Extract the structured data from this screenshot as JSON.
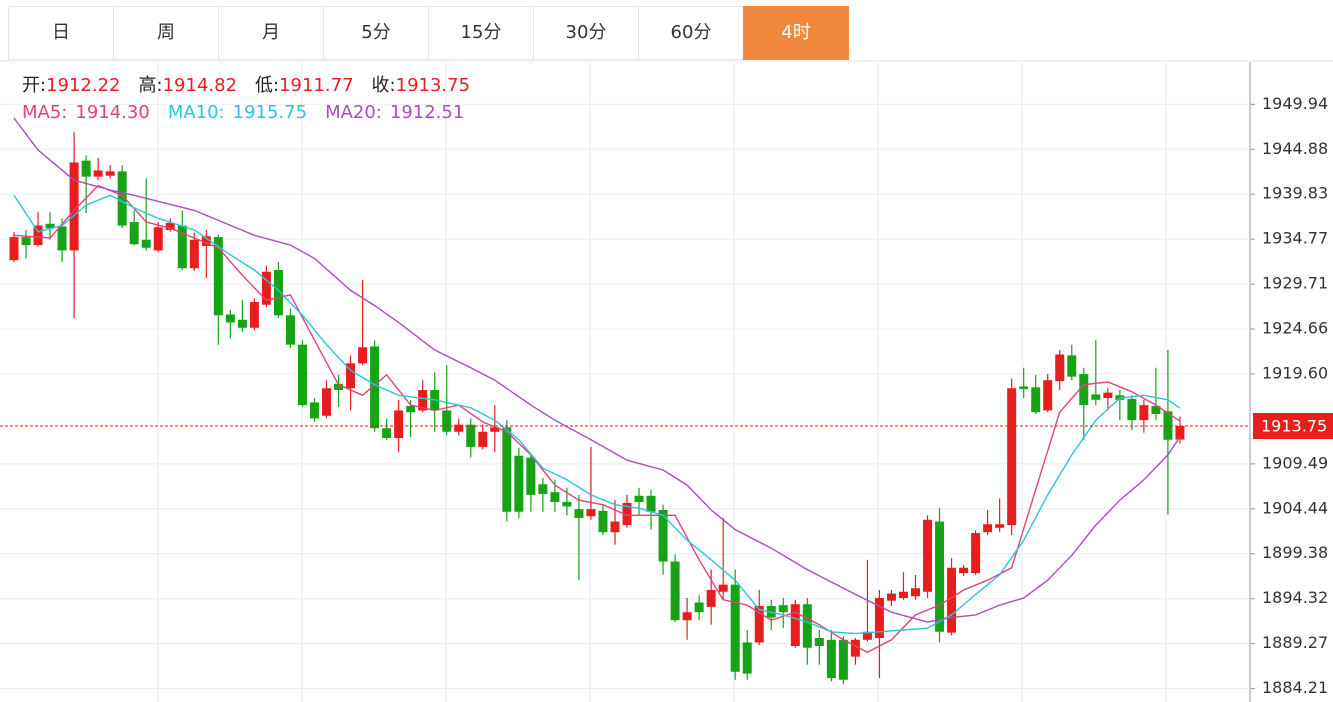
{
  "tabs": [
    {
      "label": "日"
    },
    {
      "label": "周"
    },
    {
      "label": "月"
    },
    {
      "label": "5分"
    },
    {
      "label": "15分"
    },
    {
      "label": "30分"
    },
    {
      "label": "60分"
    },
    {
      "label": "4时",
      "active": true
    }
  ],
  "chart_data": {
    "type": "candlestick",
    "up_color": "#e81e1e",
    "down_color": "#16a316",
    "grid": true,
    "ohlc_header": [
      {
        "label": "开:",
        "value": 1912.22
      },
      {
        "label": "高:",
        "value": 1914.82
      },
      {
        "label": "低:",
        "value": 1911.77
      },
      {
        "label": "收:",
        "value": 1913.75
      }
    ],
    "ylim": [
      1882.7,
      1954.7
    ],
    "yticks": [
      1949.94,
      1944.88,
      1939.83,
      1934.77,
      1929.71,
      1924.66,
      {
        "value": 1919.6,
        "label": "1919.60"
      },
      1909.49,
      1904.44,
      1899.38,
      1894.32,
      1889.27,
      1884.21
    ],
    "open": [
      1932.4,
      1935.0,
      1934.1,
      1936.5,
      1936.2,
      1933.5,
      1943.6,
      1941.8,
      1941.9,
      1942.4,
      1936.7,
      1934.7,
      1933.5,
      1935.8,
      1936.3,
      1931.5,
      1934.0,
      1935.0,
      1926.3,
      1925.7,
      1924.8,
      1927.4,
      1931.3,
      1926.2,
      1922.9,
      1916.4,
      1914.9,
      1918.5,
      1918.0,
      1920.8,
      1922.7,
      1913.5,
      1912.4,
      1916.0,
      1915.5,
      1917.8,
      1915.5,
      1913.1,
      1913.9,
      1911.4,
      1913.1,
      1913.6,
      1910.4,
      1910.2,
      1907.2,
      1906.3,
      1905.2,
      1904.4,
      1903.6,
      1904.2,
      1901.8,
      1902.6,
      1905.9,
      1905.9,
      1904.3,
      1898.5,
      1891.9,
      1893.9,
      1893.4,
      1895.1,
      1895.9,
      1889.4,
      1889.4,
      1893.5,
      1893.6,
      1889.0,
      1893.7,
      1889.9,
      1889.7,
      1889.7,
      1887.8,
      1889.7,
      1889.9,
      1894.1,
      1894.4,
      1894.6,
      1895.1,
      1903.0,
      1890.5,
      1897.2,
      1897.2,
      1901.8,
      1902.3,
      1902.6,
      1918.2,
      1918.1,
      1915.5,
      1918.8,
      1921.7,
      1919.6,
      1917.3,
      1916.9,
      1917.2,
      1916.8,
      1914.4,
      1916.0,
      1915.4,
      1912.22
    ],
    "high": [
      1935.6,
      1935.8,
      1937.8,
      1937.8,
      1937.1,
      1946.8,
      1944.2,
      1943.9,
      1943.1,
      1943.1,
      1938.0,
      1941.6,
      1936.7,
      1937.1,
      1938.0,
      1935.5,
      1935.8,
      1935.3,
      1926.8,
      1927.9,
      1928.1,
      1931.8,
      1932.2,
      1927.0,
      1923.4,
      1916.9,
      1918.9,
      1919.5,
      1921.7,
      1930.2,
      1923.4,
      1914.6,
      1916.7,
      1916.7,
      1918.9,
      1919.8,
      1920.6,
      1914.6,
      1914.6,
      1913.9,
      1916.1,
      1914.4,
      1911.3,
      1910.5,
      1907.9,
      1907.7,
      1906.8,
      1906.0,
      1911.4,
      1904.9,
      1905.4,
      1906.0,
      1906.8,
      1906.6,
      1904.9,
      1899.3,
      1894.4,
      1894.7,
      1897.6,
      1903.4,
      1897.6,
      1890.8,
      1895.3,
      1894.2,
      1894.4,
      1894.2,
      1894.4,
      1890.8,
      1890.8,
      1890.1,
      1889.9,
      1898.7,
      1895.3,
      1895.3,
      1897.3,
      1897.0,
      1903.7,
      1904.5,
      1898.9,
      1898.1,
      1902.0,
      1904.3,
      1905.6,
      1919.1,
      1920.3,
      1919.5,
      1919.6,
      1922.3,
      1922.9,
      1920.3,
      1923.4,
      1918.0,
      1917.8,
      1917.2,
      1916.7,
      1920.3,
      1922.3,
      1914.82
    ],
    "low": [
      1932.2,
      1932.6,
      1933.9,
      1934.7,
      1932.2,
      1925.9,
      1937.7,
      1941.4,
      1941.6,
      1936.0,
      1934.1,
      1933.5,
      1933.3,
      1935.6,
      1931.3,
      1931.2,
      1930.4,
      1922.9,
      1923.6,
      1924.3,
      1924.5,
      1927.1,
      1925.9,
      1922.5,
      1915.9,
      1914.2,
      1914.6,
      1915.9,
      1915.5,
      1920.6,
      1913.1,
      1912.2,
      1910.8,
      1912.5,
      1915.3,
      1913.1,
      1912.7,
      1912.7,
      1910.2,
      1911.1,
      1910.8,
      1903.0,
      1903.4,
      1904.1,
      1904.1,
      1904.1,
      1903.7,
      1896.4,
      1903.2,
      1901.5,
      1900.4,
      1902.3,
      1903.7,
      1902.1,
      1897.0,
      1891.7,
      1889.7,
      1891.9,
      1891.4,
      1894.2,
      1885.2,
      1885.2,
      1889.1,
      1890.8,
      1891.0,
      1888.8,
      1886.9,
      1886.9,
      1885.0,
      1884.7,
      1886.9,
      1889.5,
      1885.4,
      1893.5,
      1894.2,
      1894.2,
      1894.4,
      1889.4,
      1890.2,
      1896.9,
      1897.0,
      1901.5,
      1901.8,
      1901.5,
      1916.9,
      1915.1,
      1915.3,
      1917.8,
      1918.9,
      1912.2,
      1916.1,
      1915.5,
      1914.4,
      1913.3,
      1913.0,
      1914.4,
      1903.8,
      1911.77
    ],
    "close": [
      1935.0,
      1934.1,
      1936.3,
      1936.0,
      1933.5,
      1943.4,
      1941.8,
      1942.5,
      1942.4,
      1936.3,
      1934.2,
      1933.8,
      1936.1,
      1936.6,
      1931.5,
      1934.7,
      1935.1,
      1926.2,
      1925.4,
      1924.8,
      1927.7,
      1931.1,
      1926.2,
      1922.9,
      1916.1,
      1914.6,
      1918.0,
      1917.8,
      1920.8,
      1922.6,
      1913.5,
      1912.4,
      1915.5,
      1915.3,
      1917.8,
      1915.5,
      1913.1,
      1913.9,
      1911.4,
      1913.1,
      1913.6,
      1904.1,
      1904.1,
      1906.0,
      1906.1,
      1905.2,
      1904.7,
      1903.4,
      1904.4,
      1901.8,
      1903.0,
      1905.1,
      1905.2,
      1904.1,
      1898.5,
      1891.9,
      1892.8,
      1892.8,
      1895.3,
      1895.9,
      1886.1,
      1885.9,
      1893.5,
      1892.2,
      1892.8,
      1893.7,
      1888.8,
      1889.0,
      1885.4,
      1885.2,
      1889.7,
      1890.6,
      1894.4,
      1894.9,
      1895.1,
      1895.5,
      1903.2,
      1890.6,
      1897.8,
      1897.8,
      1901.7,
      1902.7,
      1902.7,
      1918.0,
      1917.9,
      1915.3,
      1918.9,
      1921.8,
      1919.3,
      1916.1,
      1916.7,
      1917.5,
      1916.7,
      1914.4,
      1916.1,
      1915.1,
      1912.2,
      1913.75
    ],
    "series": [
      {
        "name": "MA5:",
        "color": "#e5407b",
        "last_label": "1914.30",
        "x": [
          0,
          3,
          5,
          7,
          9,
          11,
          13,
          15,
          17,
          19,
          21,
          23,
          25,
          27,
          29,
          31,
          33,
          35,
          37,
          39,
          41,
          43,
          45,
          47,
          49,
          51,
          53,
          55,
          57,
          59,
          61,
          63,
          65,
          67,
          69,
          71,
          73,
          75,
          77,
          79,
          81,
          83,
          85,
          87,
          89,
          91,
          93,
          95,
          97
        ],
        "values": [
          1935.2,
          1934.9,
          1938.0,
          1940.8,
          1939.7,
          1936.7,
          1936.0,
          1934.9,
          1933.8,
          1930.7,
          1927.9,
          1928.5,
          1923.4,
          1918.4,
          1917.2,
          1919.5,
          1916.1,
          1915.5,
          1916.1,
          1914.2,
          1913.1,
          1910.5,
          1907.1,
          1905.4,
          1904.9,
          1903.7,
          1903.7,
          1903.7,
          1898.7,
          1894.2,
          1893.6,
          1891.9,
          1892.8,
          1891.4,
          1889.7,
          1888.3,
          1889.7,
          1892.5,
          1893.6,
          1895.3,
          1896.4,
          1897.8,
          1906.6,
          1915.3,
          1918.4,
          1918.7,
          1917.6,
          1916.1,
          1914.3
        ]
      },
      {
        "name": "MA10:",
        "color": "#2cc5d8",
        "last_label": "1915.75",
        "x": [
          0,
          2,
          4,
          6,
          8,
          10,
          12,
          15,
          18,
          20,
          22,
          24,
          26,
          28,
          30,
          32,
          35,
          38,
          40,
          42,
          44,
          46,
          48,
          50,
          52,
          54,
          56,
          58,
          60,
          62,
          64,
          66,
          68,
          70,
          72,
          74,
          76,
          78,
          80,
          82,
          84,
          86,
          88,
          90,
          92,
          94,
          96,
          97
        ],
        "values": [
          1939.7,
          1935.6,
          1936.3,
          1938.6,
          1939.7,
          1938.3,
          1937.1,
          1935.8,
          1933.0,
          1931.3,
          1929.0,
          1926.2,
          1922.9,
          1920.0,
          1918.4,
          1917.2,
          1916.7,
          1915.8,
          1914.4,
          1912.2,
          1909.0,
          1907.7,
          1906.0,
          1904.9,
          1904.5,
          1903.7,
          1900.9,
          1898.7,
          1896.4,
          1893.1,
          1892.5,
          1891.7,
          1890.6,
          1890.4,
          1890.6,
          1890.8,
          1891.0,
          1892.5,
          1894.8,
          1897.0,
          1900.9,
          1906.0,
          1910.5,
          1914.4,
          1916.9,
          1917.2,
          1916.7,
          1915.75
        ]
      },
      {
        "name": "MA20:",
        "color": "#a94ec0",
        "last_label": "1912.51",
        "x": [
          0,
          2,
          5,
          8,
          10,
          15,
          20,
          23,
          25,
          28,
          30,
          32,
          35,
          38,
          40,
          43,
          45,
          48,
          51,
          54,
          56,
          58,
          60,
          63,
          66,
          70,
          73,
          76,
          78,
          80,
          82,
          84,
          86,
          88,
          90,
          92,
          94,
          96,
          97
        ],
        "values": [
          1948.4,
          1944.8,
          1941.4,
          1940.3,
          1939.7,
          1938.0,
          1935.2,
          1934.1,
          1932.6,
          1929.0,
          1927.3,
          1925.4,
          1922.3,
          1920.3,
          1918.9,
          1916.1,
          1914.4,
          1912.2,
          1909.9,
          1908.8,
          1907.1,
          1904.3,
          1902.1,
          1900.0,
          1897.6,
          1894.8,
          1892.8,
          1891.7,
          1892.2,
          1892.5,
          1893.6,
          1894.4,
          1896.4,
          1899.2,
          1902.6,
          1905.4,
          1907.7,
          1910.5,
          1912.51
        ]
      }
    ]
  }
}
